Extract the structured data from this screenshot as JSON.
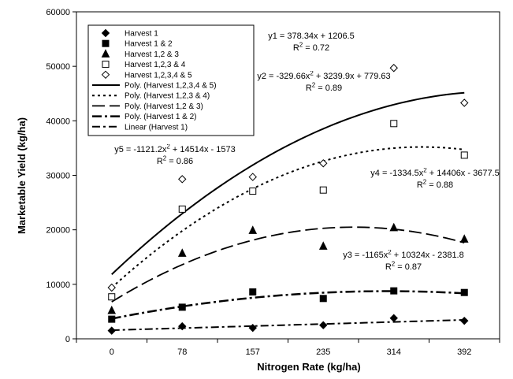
{
  "chart_data": {
    "type": "scatter",
    "title": "",
    "xlabel": "Nitrogen Rate (kg/ha)",
    "ylabel": "Marketable Yield (kg/ha)",
    "x": [
      0,
      78,
      157,
      235,
      314,
      392
    ],
    "x_tick_labels": [
      "0",
      "78",
      "157",
      "235",
      "314",
      "392"
    ],
    "ylim": [
      0,
      60000
    ],
    "y_ticks": [
      0,
      10000,
      20000,
      30000,
      40000,
      50000,
      60000
    ],
    "y_tick_labels": [
      "0",
      "10000",
      "20000",
      "30000",
      "40000",
      "50000",
      "60000"
    ],
    "grid": false,
    "legend_position": "top-left",
    "series": [
      {
        "name": "Harvest 1",
        "marker": "diamond-filled",
        "values": [
          1500,
          2300,
          2000,
          2500,
          3800,
          3300
        ]
      },
      {
        "name": "Harvest 1 & 2",
        "marker": "square-filled",
        "values": [
          3600,
          5800,
          8600,
          7400,
          8800,
          8500
        ]
      },
      {
        "name": "Harvest 1,2 & 3",
        "marker": "triangle-filled",
        "values": [
          5200,
          15700,
          19900,
          17000,
          20400,
          18300
        ]
      },
      {
        "name": "Harvest 1,2,3 & 4",
        "marker": "square-open",
        "values": [
          7700,
          23800,
          27100,
          27300,
          39500,
          33700
        ]
      },
      {
        "name": "Harvest 1,2,3,4 & 5",
        "marker": "diamond-open",
        "values": [
          9400,
          29300,
          29700,
          32200,
          49700,
          43300
        ]
      }
    ],
    "trendlines": [
      {
        "name": "Poly. (Harvest 1,2,3,4 & 5)",
        "dash": "solid",
        "width": 2,
        "fit": "poly",
        "coef": [
          -1121.2,
          14514,
          -1573
        ]
      },
      {
        "name": "Poly. (Harvest 1,2,3 & 4)",
        "dash": "dot",
        "width": 2,
        "fit": "poly",
        "coef": [
          -1334.5,
          14406,
          -3677.5
        ]
      },
      {
        "name": "Poly. (Harvest 1,2 & 3)",
        "dash": "longdash",
        "width": 1.8,
        "fit": "poly",
        "coef": [
          -1165,
          10324,
          -2381.8
        ]
      },
      {
        "name": "Poly. (Harvest 1 & 2)",
        "dash": "dashdot-thick",
        "width": 2.5,
        "fit": "poly",
        "coef": [
          -329.66,
          3239.9,
          779.63
        ]
      },
      {
        "name": "Linear (Harvest 1)",
        "dash": "dashdot",
        "width": 2,
        "fit": "linear",
        "coef": [
          378.34,
          1206.5
        ]
      }
    ],
    "equations": [
      {
        "eq": "y1 = 378.34x + 1206.5",
        "r2": "R<sup>2</sup> = 0.72"
      },
      {
        "eq": "y2 = -329.66x<sup>2</sup> + 3239.9x + 779.63",
        "r2": "R<sup>2</sup> = 0.89"
      },
      {
        "eq": "y5 = -1121.2x<sup>2</sup> + 14514x - 1573",
        "r2": "R<sup>2</sup> = 0.86"
      },
      {
        "eq": "y4 = -1334.5x<sup>2</sup> + 14406x - 3677.5",
        "r2": "R<sup>2</sup> = 0.88"
      },
      {
        "eq": "y3 = -1165x<sup>2</sup> + 10324x - 2381.8",
        "r2": "R<sup>2</sup> = 0.87"
      }
    ]
  }
}
